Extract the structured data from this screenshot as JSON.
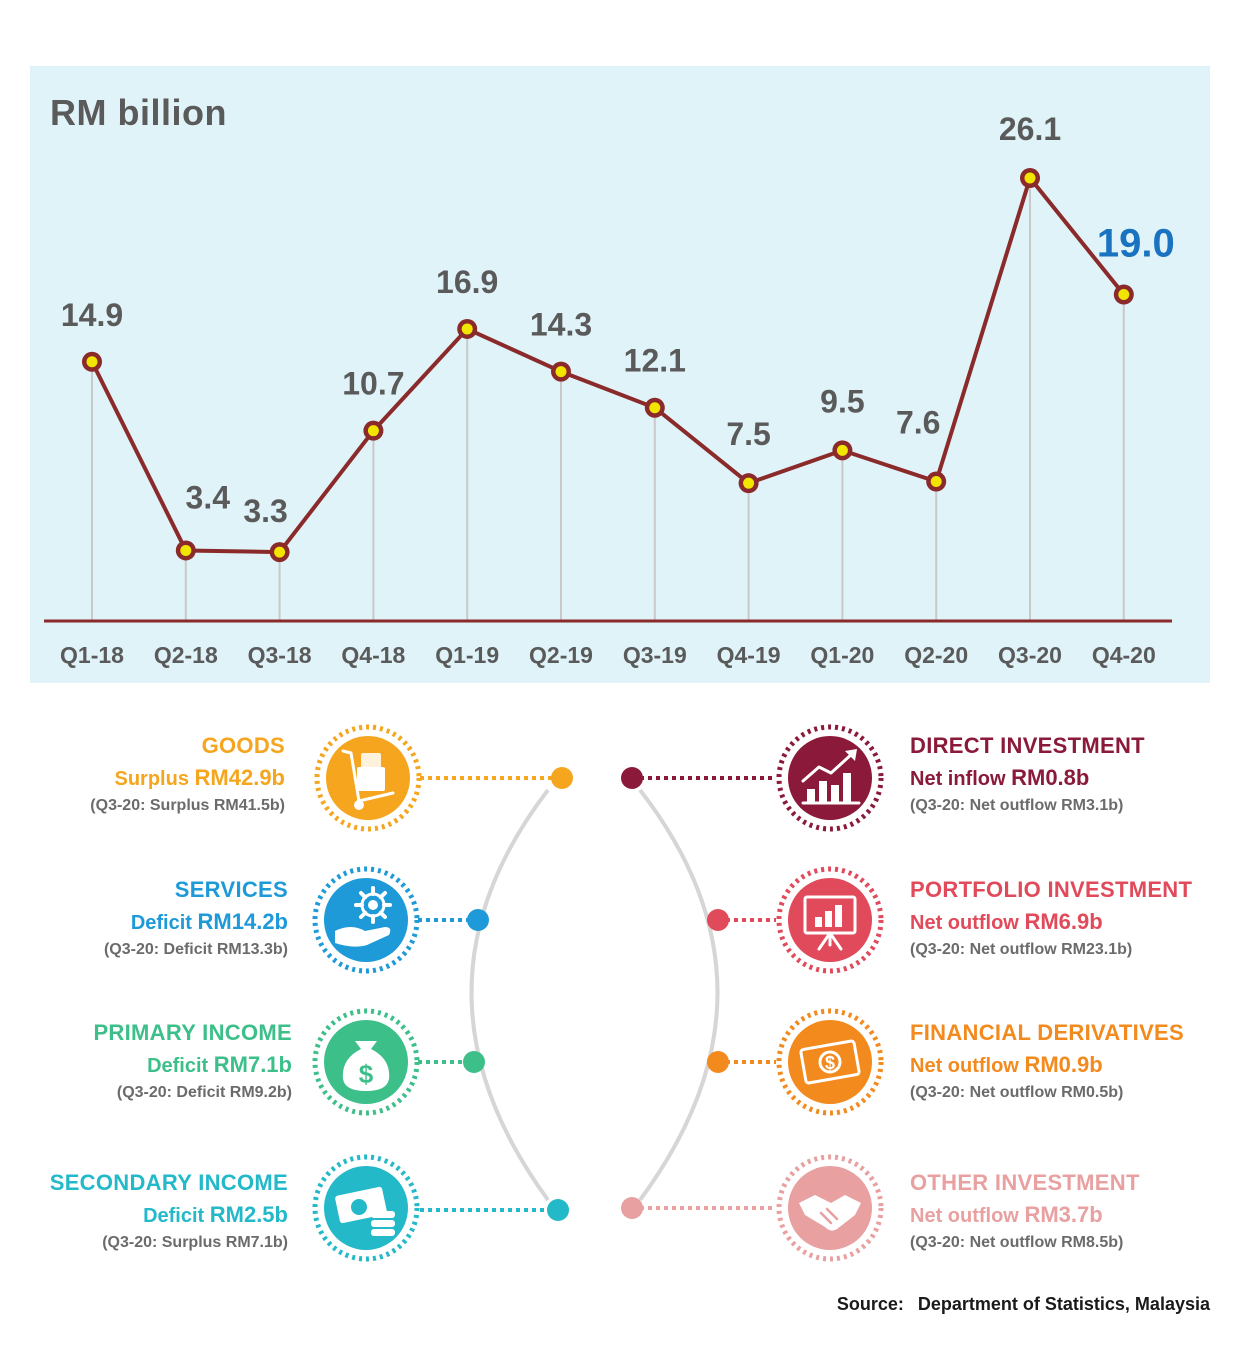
{
  "chart_data": {
    "type": "line",
    "ylabel": "RM  billion",
    "categories": [
      "Q1-18",
      "Q2-18",
      "Q3-18",
      "Q4-18",
      "Q1-19",
      "Q2-19",
      "Q3-19",
      "Q4-19",
      "Q1-20",
      "Q2-20",
      "Q3-20",
      "Q4-20"
    ],
    "values": [
      14.9,
      3.4,
      3.3,
      10.7,
      16.9,
      14.3,
      12.1,
      7.5,
      9.5,
      7.6,
      26.1,
      19.0
    ],
    "value_labels": [
      "14.9",
      "3.4",
      "3.3",
      "10.7",
      "16.9",
      "14.3",
      "12.1",
      "7.5",
      "9.5",
      "7.6",
      "26.1",
      "19.0"
    ],
    "highlight_last": true,
    "colors": {
      "background": "#dff3f9",
      "line": "#8b2a2a",
      "marker_fill": "#f2e600",
      "label": "#5a5a5a",
      "highlight_label": "#1a73c0",
      "axis": "#8b2a2a",
      "drop_lines": "#c9c9c9"
    }
  },
  "current_account": [
    {
      "title": "GOODS",
      "value_prefix": "Surplus ",
      "value_amount": "RM42.9b",
      "prev": "(Q3-20: Surplus RM41.5b)",
      "color": "#f5a51e",
      "icon": "hand-truck-icon"
    },
    {
      "title": "SERVICES",
      "value_prefix": "Deficit ",
      "value_amount": "RM14.2b",
      "prev": "(Q3-20: Deficit RM13.3b)",
      "color": "#1e9ad8",
      "icon": "hand-gear-icon"
    },
    {
      "title": "PRIMARY INCOME",
      "value_prefix": "Deficit ",
      "value_amount": "RM7.1b",
      "prev": "(Q3-20: Deficit RM9.2b)",
      "color": "#3dbf8a",
      "icon": "money-bag-icon"
    },
    {
      "title": "SECONDARY INCOME",
      "value_prefix": "Deficit ",
      "value_amount": "RM2.5b",
      "prev": "(Q3-20: Surplus RM7.1b)",
      "color": "#23b9c9",
      "icon": "cash-coins-icon"
    }
  ],
  "financial_account": [
    {
      "title": "DIRECT INVESTMENT",
      "value_prefix": "Net inflow ",
      "value_amount": "RM0.8b",
      "prev": "(Q3-20: Net outflow RM3.1b)",
      "color": "#8b1a3a",
      "icon": "growth-chart-icon"
    },
    {
      "title": "PORTFOLIO INVESTMENT",
      "value_prefix": "Net outflow ",
      "value_amount": "RM6.9b",
      "prev": "(Q3-20: Net outflow RM23.1b)",
      "color": "#e04a5a",
      "icon": "presentation-board-icon"
    },
    {
      "title": "FINANCIAL DERIVATIVES",
      "value_prefix": "Net outflow ",
      "value_amount": "RM0.9b",
      "prev": "(Q3-20: Net outflow RM0.5b)",
      "color": "#f28a1e",
      "icon": "banknote-icon"
    },
    {
      "title": "OTHER INVESTMENT",
      "value_prefix": "Net outflow ",
      "value_amount": "RM3.7b",
      "prev": "(Q3-20: Net outflow RM8.5b)",
      "color": "#e8a0a0",
      "icon": "handshake-icon"
    }
  ],
  "source": {
    "label": "Source:",
    "text": "Department of Statistics, Malaysia"
  }
}
